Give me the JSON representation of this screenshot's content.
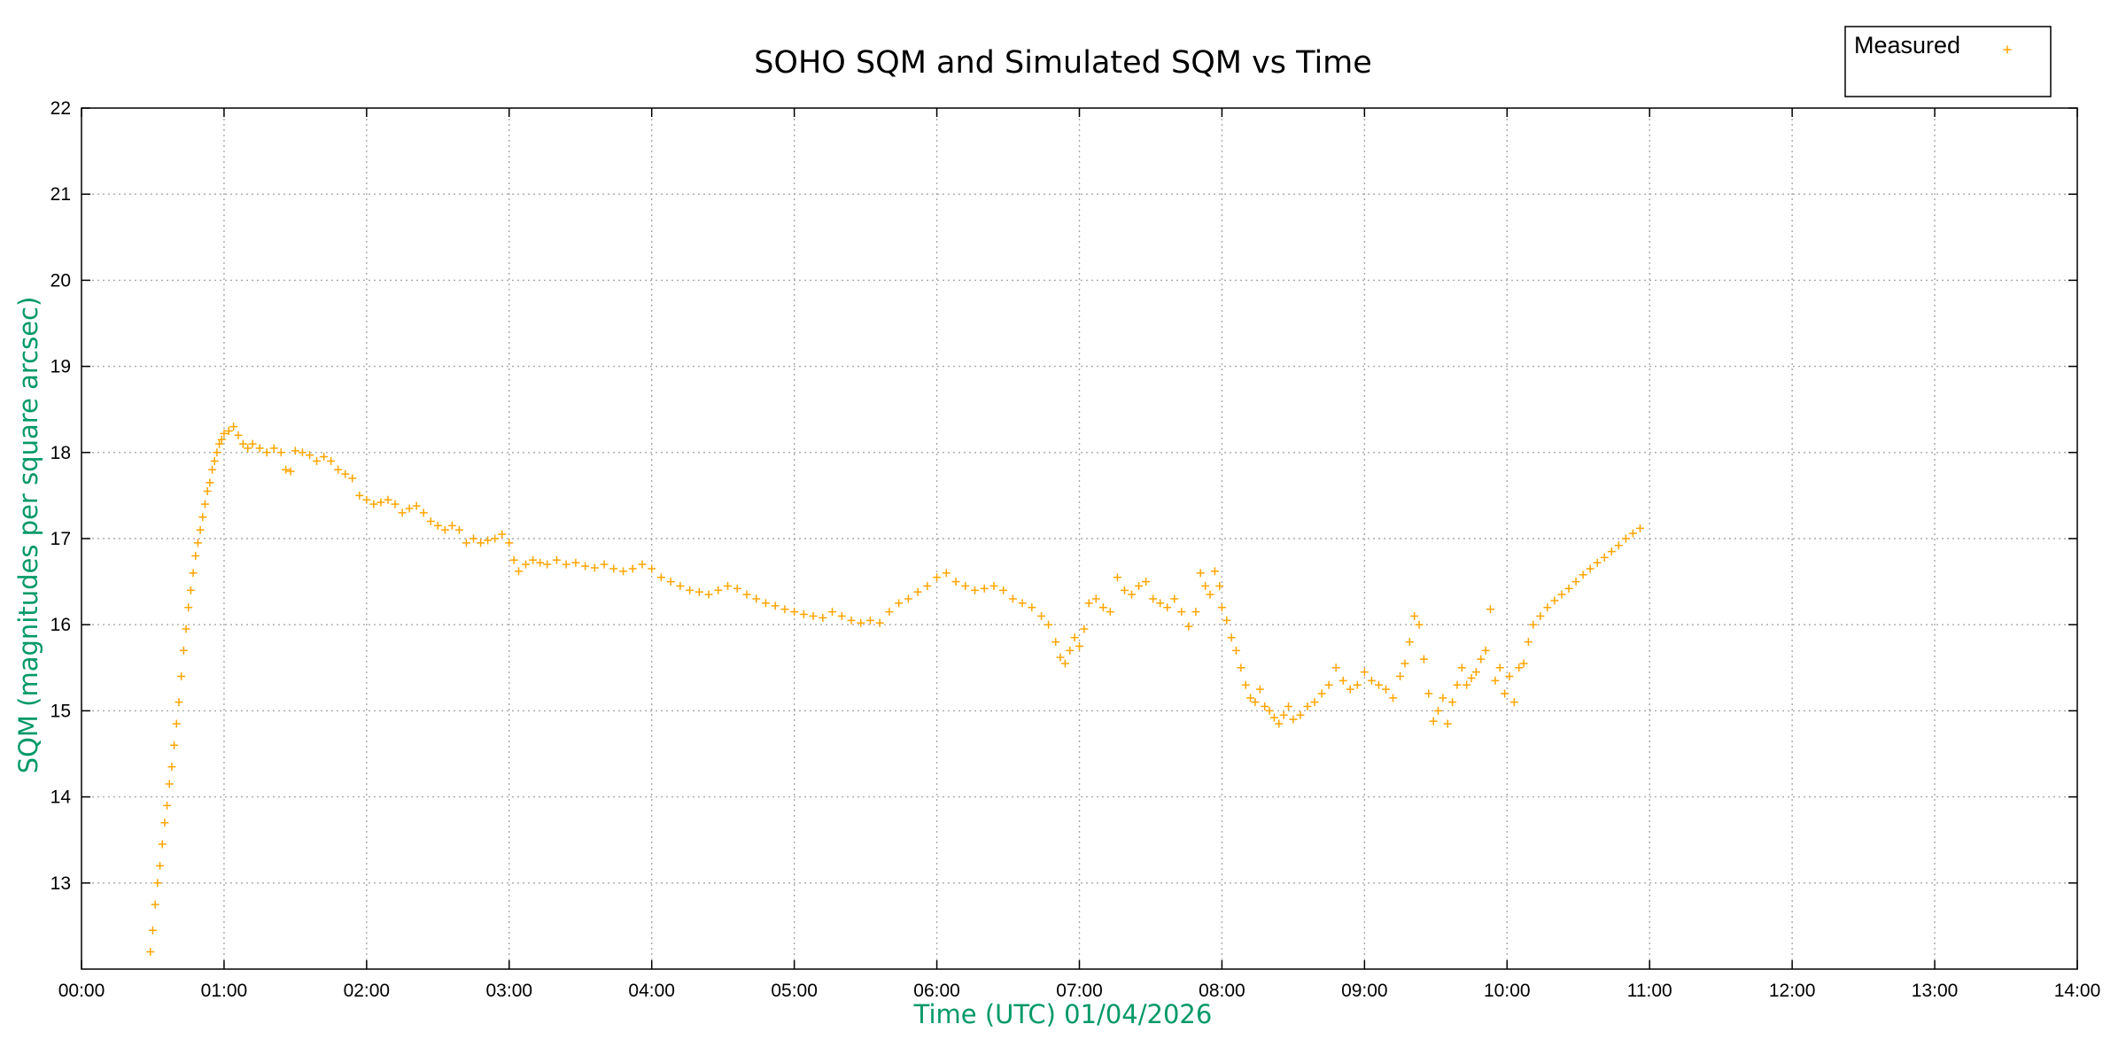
{
  "chart_data": {
    "type": "scatter",
    "title": "SOHO SQM and Simulated SQM vs Time",
    "xlabel": "Time (UTC)   01/04/2026",
    "ylabel": "SQM (magnitudes per square arcsec)",
    "xlim": [
      "00:00",
      "14:00"
    ],
    "ylim": [
      12,
      22
    ],
    "x_ticks": [
      "00:00",
      "01:00",
      "02:00",
      "03:00",
      "04:00",
      "05:00",
      "06:00",
      "07:00",
      "08:00",
      "09:00",
      "10:00",
      "11:00",
      "12:00",
      "13:00",
      "14:00"
    ],
    "y_ticks": [
      13,
      14,
      15,
      16,
      17,
      18,
      19,
      20,
      21,
      22
    ],
    "grid": true,
    "legend_position": "top-right",
    "label_color": "#009966",
    "series": [
      {
        "name": "Measured",
        "marker": "+",
        "color": "#ffa500",
        "points": [
          [
            "00:29",
            12.2
          ],
          [
            "00:30",
            12.45
          ],
          [
            "00:31",
            12.75
          ],
          [
            "00:32",
            13.0
          ],
          [
            "00:33",
            13.2
          ],
          [
            "00:34",
            13.45
          ],
          [
            "00:35",
            13.7
          ],
          [
            "00:36",
            13.9
          ],
          [
            "00:37",
            14.15
          ],
          [
            "00:38",
            14.35
          ],
          [
            "00:39",
            14.6
          ],
          [
            "00:40",
            14.85
          ],
          [
            "00:41",
            15.1
          ],
          [
            "00:42",
            15.4
          ],
          [
            "00:43",
            15.7
          ],
          [
            "00:44",
            15.95
          ],
          [
            "00:45",
            16.2
          ],
          [
            "00:46",
            16.4
          ],
          [
            "00:47",
            16.6
          ],
          [
            "00:48",
            16.8
          ],
          [
            "00:49",
            16.95
          ],
          [
            "00:50",
            17.1
          ],
          [
            "00:51",
            17.25
          ],
          [
            "00:52",
            17.4
          ],
          [
            "00:53",
            17.55
          ],
          [
            "00:54",
            17.65
          ],
          [
            "00:55",
            17.8
          ],
          [
            "00:56",
            17.9
          ],
          [
            "00:57",
            18.0
          ],
          [
            "00:58",
            18.1
          ],
          [
            "00:59",
            18.15
          ],
          [
            "01:00",
            18.22
          ],
          [
            "01:02",
            18.25
          ],
          [
            "01:04",
            18.3
          ],
          [
            "01:06",
            18.2
          ],
          [
            "01:08",
            18.1
          ],
          [
            "01:10",
            18.05
          ],
          [
            "01:12",
            18.1
          ],
          [
            "01:15",
            18.05
          ],
          [
            "01:18",
            18.0
          ],
          [
            "01:21",
            18.05
          ],
          [
            "01:24",
            18.0
          ],
          [
            "01:26",
            17.8
          ],
          [
            "01:28",
            17.78
          ],
          [
            "01:30",
            18.02
          ],
          [
            "01:33",
            18.0
          ],
          [
            "01:36",
            17.97
          ],
          [
            "01:39",
            17.9
          ],
          [
            "01:42",
            17.95
          ],
          [
            "01:45",
            17.9
          ],
          [
            "01:48",
            17.8
          ],
          [
            "01:51",
            17.75
          ],
          [
            "01:54",
            17.7
          ],
          [
            "01:57",
            17.5
          ],
          [
            "02:00",
            17.45
          ],
          [
            "02:03",
            17.4
          ],
          [
            "02:06",
            17.42
          ],
          [
            "02:09",
            17.45
          ],
          [
            "02:12",
            17.4
          ],
          [
            "02:15",
            17.3
          ],
          [
            "02:18",
            17.35
          ],
          [
            "02:21",
            17.38
          ],
          [
            "02:24",
            17.3
          ],
          [
            "02:27",
            17.2
          ],
          [
            "02:30",
            17.15
          ],
          [
            "02:33",
            17.1
          ],
          [
            "02:36",
            17.15
          ],
          [
            "02:39",
            17.1
          ],
          [
            "02:42",
            16.95
          ],
          [
            "02:45",
            17.0
          ],
          [
            "02:48",
            16.95
          ],
          [
            "02:51",
            16.98
          ],
          [
            "02:54",
            17.0
          ],
          [
            "02:57",
            17.05
          ],
          [
            "03:00",
            16.95
          ],
          [
            "03:02",
            16.75
          ],
          [
            "03:04",
            16.62
          ],
          [
            "03:07",
            16.7
          ],
          [
            "03:10",
            16.75
          ],
          [
            "03:13",
            16.72
          ],
          [
            "03:16",
            16.7
          ],
          [
            "03:20",
            16.75
          ],
          [
            "03:24",
            16.7
          ],
          [
            "03:28",
            16.72
          ],
          [
            "03:32",
            16.68
          ],
          [
            "03:36",
            16.66
          ],
          [
            "03:40",
            16.7
          ],
          [
            "03:44",
            16.65
          ],
          [
            "03:48",
            16.62
          ],
          [
            "03:52",
            16.65
          ],
          [
            "03:56",
            16.7
          ],
          [
            "04:00",
            16.65
          ],
          [
            "04:04",
            16.55
          ],
          [
            "04:08",
            16.5
          ],
          [
            "04:12",
            16.45
          ],
          [
            "04:16",
            16.4
          ],
          [
            "04:20",
            16.38
          ],
          [
            "04:24",
            16.35
          ],
          [
            "04:28",
            16.4
          ],
          [
            "04:32",
            16.45
          ],
          [
            "04:36",
            16.42
          ],
          [
            "04:40",
            16.35
          ],
          [
            "04:44",
            16.3
          ],
          [
            "04:48",
            16.25
          ],
          [
            "04:52",
            16.22
          ],
          [
            "04:56",
            16.18
          ],
          [
            "05:00",
            16.15
          ],
          [
            "05:04",
            16.12
          ],
          [
            "05:08",
            16.1
          ],
          [
            "05:12",
            16.08
          ],
          [
            "05:16",
            16.15
          ],
          [
            "05:20",
            16.1
          ],
          [
            "05:24",
            16.05
          ],
          [
            "05:28",
            16.02
          ],
          [
            "05:32",
            16.05
          ],
          [
            "05:36",
            16.02
          ],
          [
            "05:40",
            16.15
          ],
          [
            "05:44",
            16.25
          ],
          [
            "05:48",
            16.3
          ],
          [
            "05:52",
            16.38
          ],
          [
            "05:56",
            16.45
          ],
          [
            "06:00",
            16.55
          ],
          [
            "06:04",
            16.6
          ],
          [
            "06:08",
            16.5
          ],
          [
            "06:12",
            16.45
          ],
          [
            "06:16",
            16.4
          ],
          [
            "06:20",
            16.42
          ],
          [
            "06:24",
            16.45
          ],
          [
            "06:28",
            16.4
          ],
          [
            "06:32",
            16.3
          ],
          [
            "06:36",
            16.25
          ],
          [
            "06:40",
            16.2
          ],
          [
            "06:44",
            16.1
          ],
          [
            "06:47",
            16.0
          ],
          [
            "06:50",
            15.8
          ],
          [
            "06:52",
            15.62
          ],
          [
            "06:54",
            15.55
          ],
          [
            "06:56",
            15.7
          ],
          [
            "06:58",
            15.85
          ],
          [
            "07:00",
            15.75
          ],
          [
            "07:02",
            15.95
          ],
          [
            "07:04",
            16.25
          ],
          [
            "07:07",
            16.3
          ],
          [
            "07:10",
            16.2
          ],
          [
            "07:13",
            16.15
          ],
          [
            "07:16",
            16.55
          ],
          [
            "07:19",
            16.4
          ],
          [
            "07:22",
            16.35
          ],
          [
            "07:25",
            16.45
          ],
          [
            "07:28",
            16.5
          ],
          [
            "07:31",
            16.3
          ],
          [
            "07:34",
            16.25
          ],
          [
            "07:37",
            16.2
          ],
          [
            "07:40",
            16.3
          ],
          [
            "07:43",
            16.15
          ],
          [
            "07:46",
            15.98
          ],
          [
            "07:49",
            16.15
          ],
          [
            "07:51",
            16.6
          ],
          [
            "07:53",
            16.45
          ],
          [
            "07:55",
            16.35
          ],
          [
            "07:57",
            16.62
          ],
          [
            "07:59",
            16.45
          ],
          [
            "08:00",
            16.2
          ],
          [
            "08:02",
            16.05
          ],
          [
            "08:04",
            15.85
          ],
          [
            "08:06",
            15.7
          ],
          [
            "08:08",
            15.5
          ],
          [
            "08:10",
            15.3
          ],
          [
            "08:12",
            15.15
          ],
          [
            "08:14",
            15.1
          ],
          [
            "08:16",
            15.25
          ],
          [
            "08:18",
            15.05
          ],
          [
            "08:20",
            15.0
          ],
          [
            "08:22",
            14.92
          ],
          [
            "08:24",
            14.85
          ],
          [
            "08:26",
            14.95
          ],
          [
            "08:28",
            15.05
          ],
          [
            "08:30",
            14.9
          ],
          [
            "08:33",
            14.95
          ],
          [
            "08:36",
            15.05
          ],
          [
            "08:39",
            15.1
          ],
          [
            "08:42",
            15.2
          ],
          [
            "08:45",
            15.3
          ],
          [
            "08:48",
            15.5
          ],
          [
            "08:51",
            15.35
          ],
          [
            "08:54",
            15.25
          ],
          [
            "08:57",
            15.3
          ],
          [
            "09:00",
            15.45
          ],
          [
            "09:03",
            15.35
          ],
          [
            "09:06",
            15.3
          ],
          [
            "09:09",
            15.25
          ],
          [
            "09:12",
            15.15
          ],
          [
            "09:15",
            15.4
          ],
          [
            "09:17",
            15.55
          ],
          [
            "09:19",
            15.8
          ],
          [
            "09:21",
            16.1
          ],
          [
            "09:23",
            16.0
          ],
          [
            "09:25",
            15.6
          ],
          [
            "09:27",
            15.2
          ],
          [
            "09:29",
            14.88
          ],
          [
            "09:31",
            15.0
          ],
          [
            "09:33",
            15.15
          ],
          [
            "09:35",
            14.85
          ],
          [
            "09:37",
            15.1
          ],
          [
            "09:39",
            15.3
          ],
          [
            "09:41",
            15.5
          ],
          [
            "09:43",
            15.3
          ],
          [
            "09:45",
            15.38
          ],
          [
            "09:47",
            15.45
          ],
          [
            "09:49",
            15.6
          ],
          [
            "09:51",
            15.7
          ],
          [
            "09:53",
            16.18
          ],
          [
            "09:55",
            15.35
          ],
          [
            "09:57",
            15.5
          ],
          [
            "09:59",
            15.2
          ],
          [
            "10:01",
            15.4
          ],
          [
            "10:03",
            15.1
          ],
          [
            "10:05",
            15.5
          ],
          [
            "10:07",
            15.55
          ],
          [
            "10:09",
            15.8
          ],
          [
            "10:11",
            16.0
          ],
          [
            "10:14",
            16.1
          ],
          [
            "10:17",
            16.2
          ],
          [
            "10:20",
            16.28
          ],
          [
            "10:23",
            16.35
          ],
          [
            "10:26",
            16.42
          ],
          [
            "10:29",
            16.5
          ],
          [
            "10:32",
            16.58
          ],
          [
            "10:35",
            16.65
          ],
          [
            "10:38",
            16.72
          ],
          [
            "10:41",
            16.78
          ],
          [
            "10:44",
            16.85
          ],
          [
            "10:47",
            16.92
          ],
          [
            "10:50",
            17.0
          ],
          [
            "10:53",
            17.06
          ],
          [
            "10:56",
            17.12
          ]
        ]
      }
    ]
  }
}
